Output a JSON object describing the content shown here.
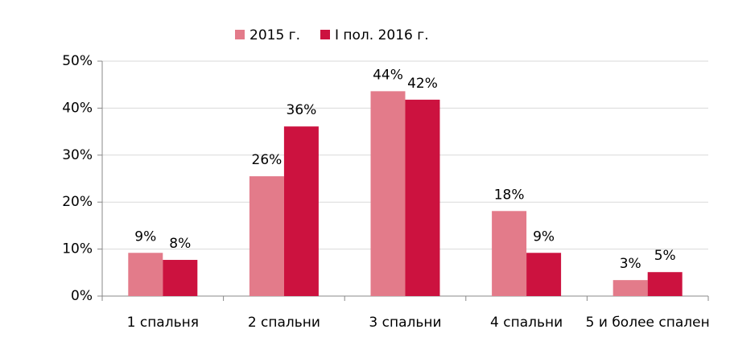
{
  "chart_data": {
    "type": "bar",
    "categories": [
      "1 спальня",
      "2 спальни",
      "3 спальни",
      "4 спальни",
      "5 и более спален"
    ],
    "series": [
      {
        "name": "2015 г.",
        "color": "#e37b8a",
        "values": [
          9.2,
          25.5,
          43.6,
          18.1,
          3.4
        ],
        "value_labels": [
          "9%",
          "26%",
          "44%",
          "18%",
          "3%"
        ]
      },
      {
        "name": "I пол. 2016 г.",
        "color": "#cc123f",
        "values": [
          7.7,
          36.1,
          41.8,
          9.2,
          5.1
        ],
        "value_labels": [
          "8%",
          "36%",
          "42%",
          "9%",
          "5%"
        ]
      }
    ],
    "ylim": [
      0,
      50
    ],
    "yticks": [
      {
        "value": 0,
        "label": "0%"
      },
      {
        "value": 10,
        "label": "10%"
      },
      {
        "value": 20,
        "label": "20%"
      },
      {
        "value": 30,
        "label": "30%"
      },
      {
        "value": 40,
        "label": "40%"
      },
      {
        "value": 50,
        "label": "50%"
      }
    ],
    "grid": true
  }
}
